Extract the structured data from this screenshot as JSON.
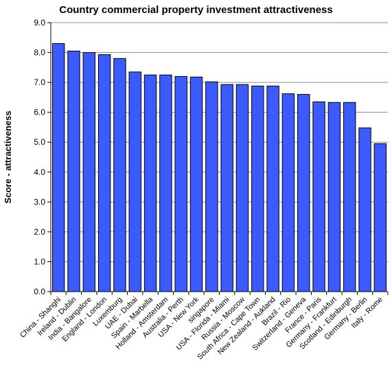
{
  "chart_data": {
    "type": "bar",
    "title": "Country commercial property investment attractiveness",
    "xlabel": "",
    "ylabel": "Score - attractiveness",
    "ylim": [
      0,
      9
    ],
    "yticks": [
      "0.0",
      "1.0",
      "2.0",
      "3.0",
      "4.0",
      "5.0",
      "6.0",
      "7.0",
      "8.0",
      "9.0"
    ],
    "grid": true,
    "bar_color": "#3b5bff",
    "categories": [
      "China - Shanghi",
      "Ireland - Dublin",
      "India - Bangalore",
      "England - London",
      "Luxemburg",
      "UAE - Dubai",
      "Spain - Marbella",
      "Holland - Amsterdam",
      "Australia - Perth",
      "USA - New York",
      "singapore",
      "USA - Florida - Miami",
      "Russia - Moscow",
      "South Africa - Cape Town",
      "New Zealand - Aukland",
      "Brazil - Rio",
      "Switzerland - Geneva",
      "France - Paris",
      "Germany - Frankfurt",
      "Scotland - Edinburgh",
      "Germany - Berlin",
      "Italy - Rome"
    ],
    "values": [
      8.3,
      8.05,
      8.0,
      7.93,
      7.8,
      7.35,
      7.25,
      7.25,
      7.2,
      7.18,
      7.02,
      6.93,
      6.93,
      6.88,
      6.88,
      6.62,
      6.6,
      6.35,
      6.33,
      6.33,
      5.48,
      4.95
    ]
  }
}
